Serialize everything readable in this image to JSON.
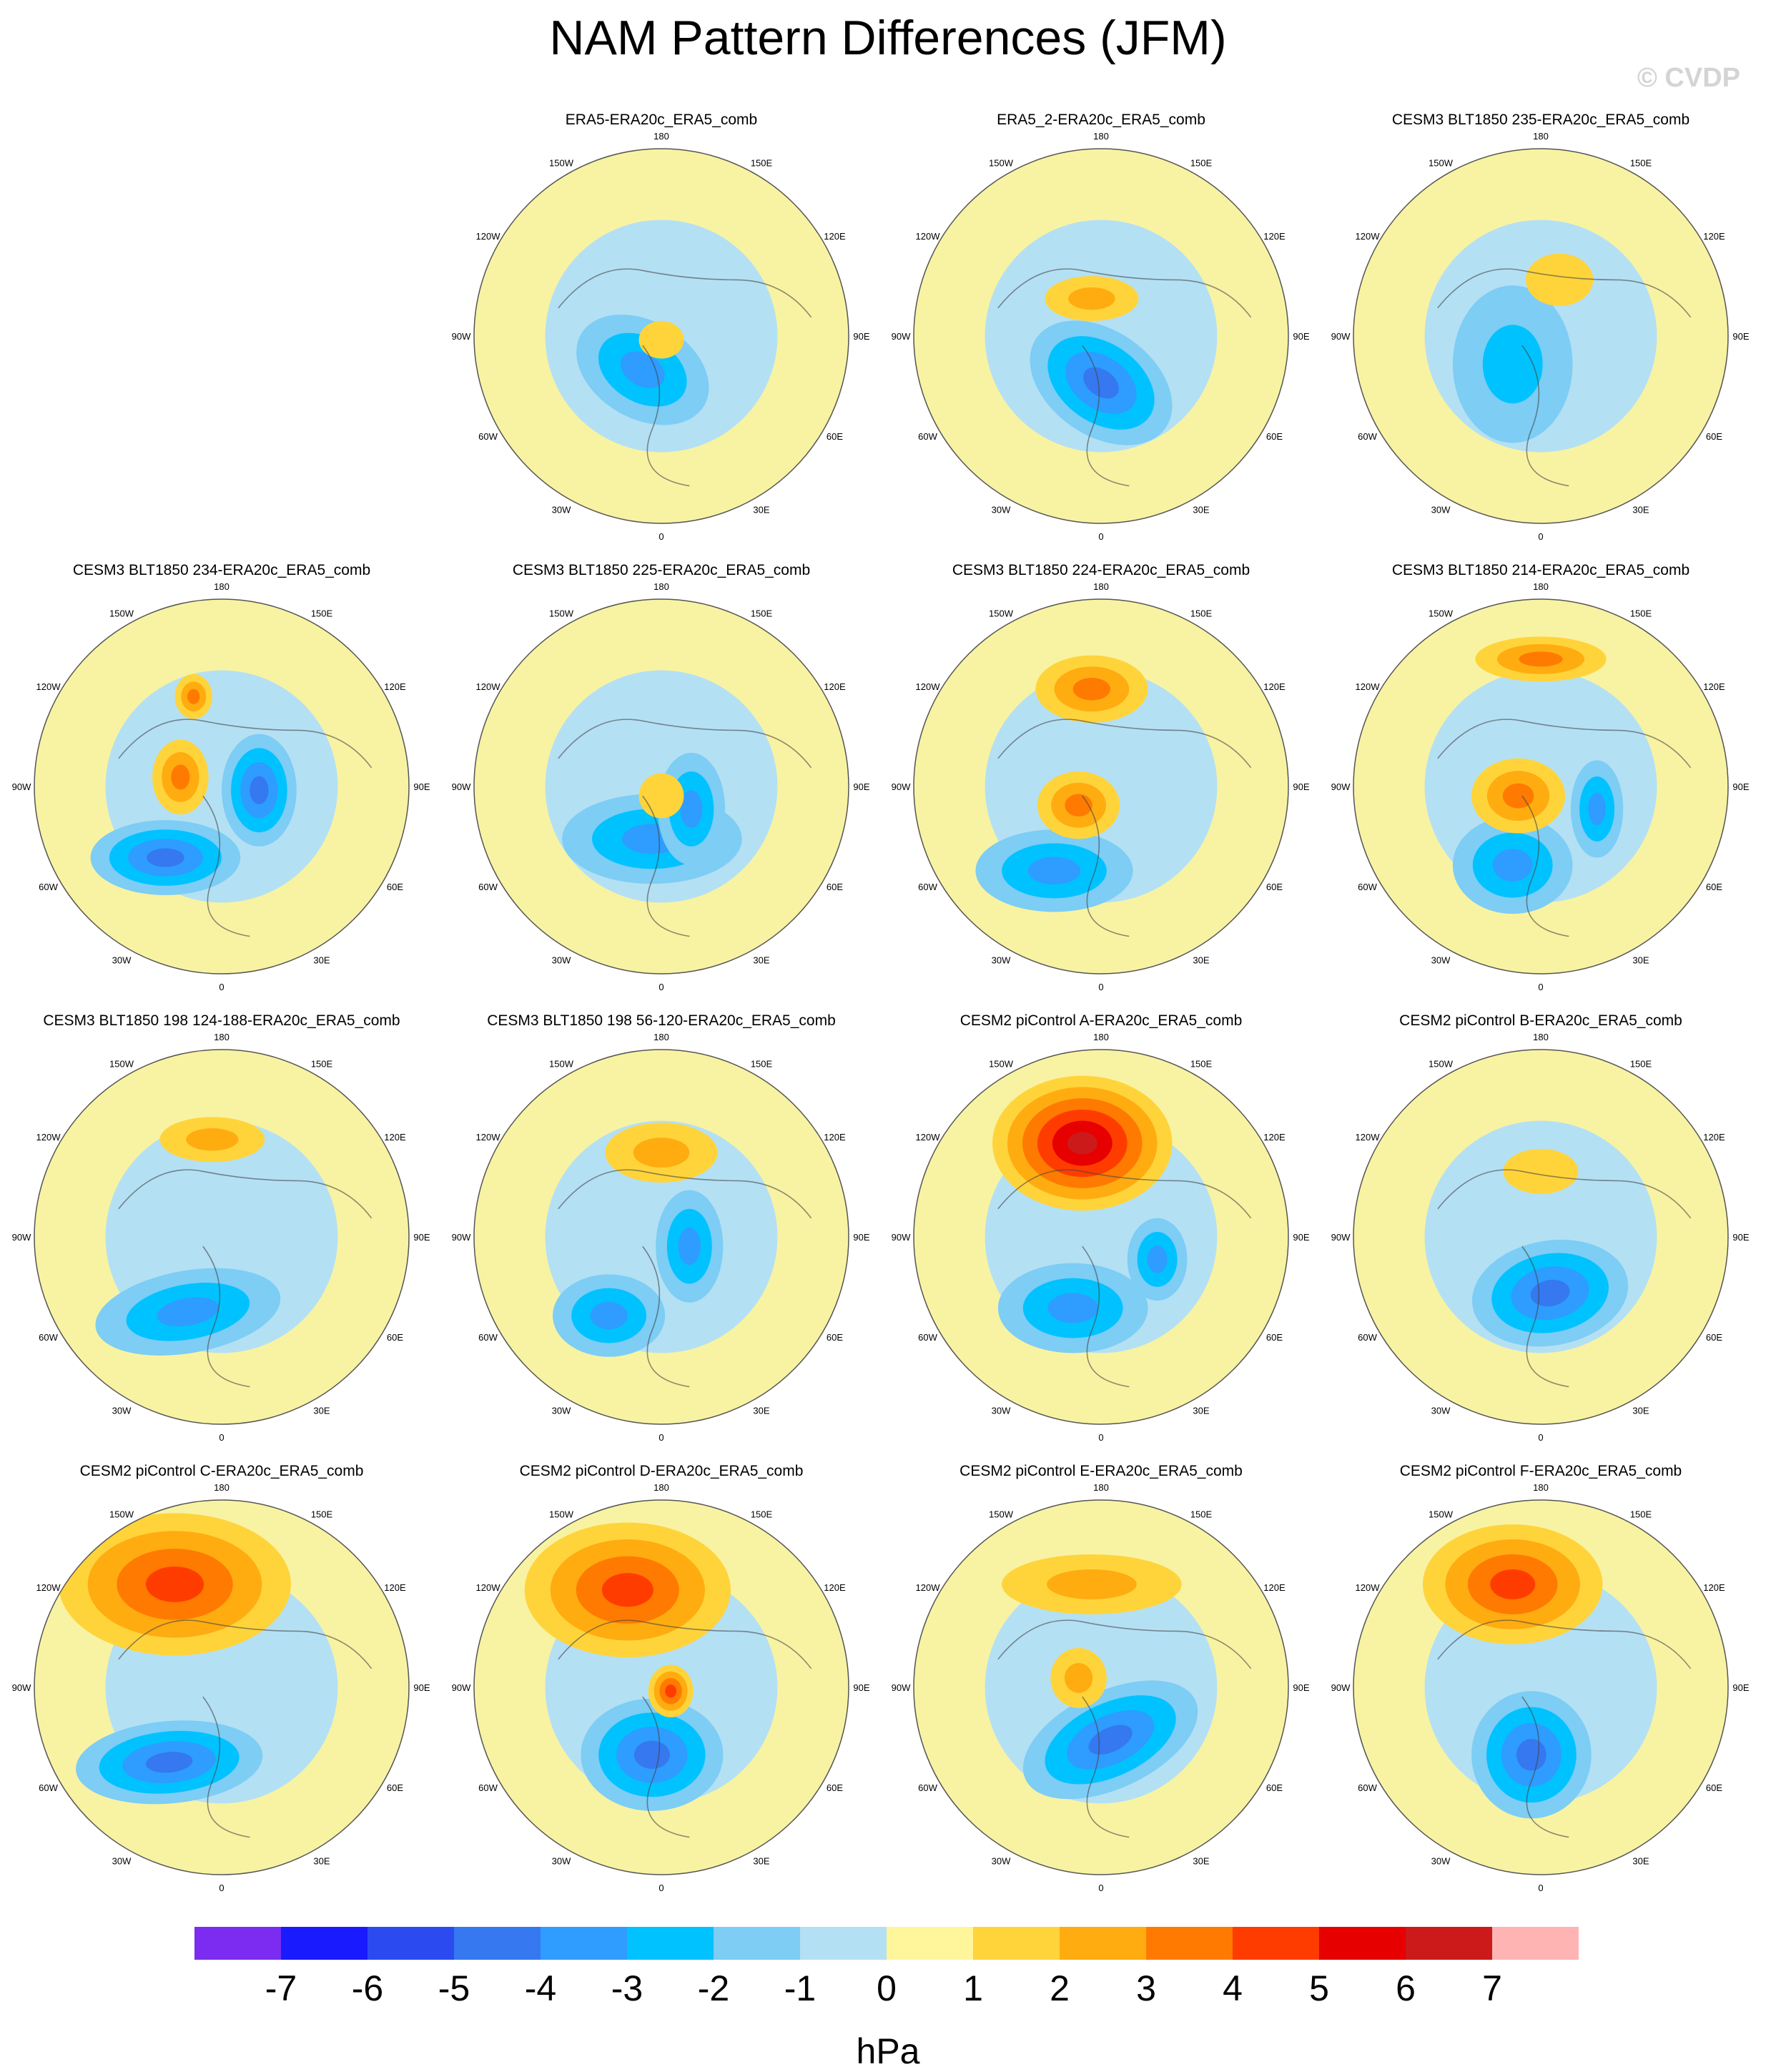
{
  "title": "NAM Pattern Differences (JFM)",
  "watermark": "© CVDP",
  "lon_labels": [
    "180",
    "150E",
    "120E",
    "90E",
    "60E",
    "30E",
    "0",
    "30W",
    "60W",
    "90W",
    "120W",
    "150W"
  ],
  "colorbar": {
    "units": "hPa",
    "tick_labels": [
      "-7",
      "-6",
      "-5",
      "-4",
      "-3",
      "-2",
      "-1",
      "0",
      "1",
      "2",
      "3",
      "4",
      "5",
      "6",
      "7"
    ],
    "colors": [
      "#7b2cf0",
      "#1a1aff",
      "#2b4bf0",
      "#3578f0",
      "#2f9cff",
      "#00c2ff",
      "#7dcdf5",
      "#b4e0f4",
      "#fff59a",
      "#ffd43b",
      "#ffac10",
      "#ff7a00",
      "#ff3c00",
      "#e60000",
      "#cc1a1a",
      "#ffb4b4"
    ]
  },
  "chart_data": [
    {
      "type": "contour-map",
      "title": "ERA5-ERA20c_ERA5_comb",
      "min_level": -3,
      "max_level": 1
    },
    {
      "type": "contour-map",
      "title": "ERA5_2-ERA20c_ERA5_comb",
      "min_level": -4,
      "max_level": 2
    },
    {
      "type": "contour-map",
      "title": "CESM3 BLT1850 235-ERA20c_ERA5_comb",
      "min_level": -2,
      "max_level": 1
    },
    {
      "type": "contour-map",
      "title": "CESM3 BLT1850 234-ERA20c_ERA5_comb",
      "min_level": -4,
      "max_level": 3
    },
    {
      "type": "contour-map",
      "title": "CESM3 BLT1850 225-ERA20c_ERA5_comb",
      "min_level": -3,
      "max_level": 1
    },
    {
      "type": "contour-map",
      "title": "CESM3 BLT1850 224-ERA20c_ERA5_comb",
      "min_level": -3,
      "max_level": 3
    },
    {
      "type": "contour-map",
      "title": "CESM3 BLT1850 214-ERA20c_ERA5_comb",
      "min_level": -3,
      "max_level": 3
    },
    {
      "type": "contour-map",
      "title": "CESM3 BLT1850 198 124-188-ERA20c_ERA5_comb",
      "min_level": -3,
      "max_level": 2
    },
    {
      "type": "contour-map",
      "title": "CESM3 BLT1850 198 56-120-ERA20c_ERA5_comb",
      "min_level": -3,
      "max_level": 2
    },
    {
      "type": "contour-map",
      "title": "CESM2 piControl A-ERA20c_ERA5_comb",
      "min_level": -3,
      "max_level": 6
    },
    {
      "type": "contour-map",
      "title": "CESM2 piControl B-ERA20c_ERA5_comb",
      "min_level": -4,
      "max_level": 1
    },
    {
      "type": "contour-map",
      "title": "CESM2 piControl C-ERA20c_ERA5_comb",
      "min_level": -4,
      "max_level": 4
    },
    {
      "type": "contour-map",
      "title": "CESM2 piControl D-ERA20c_ERA5_comb",
      "min_level": -4,
      "max_level": 4
    },
    {
      "type": "contour-map",
      "title": "CESM2 piControl E-ERA20c_ERA5_comb",
      "min_level": -4,
      "max_level": 2
    },
    {
      "type": "contour-map",
      "title": "CESM2 piControl F-ERA20c_ERA5_comb",
      "min_level": -4,
      "max_level": 4
    }
  ]
}
